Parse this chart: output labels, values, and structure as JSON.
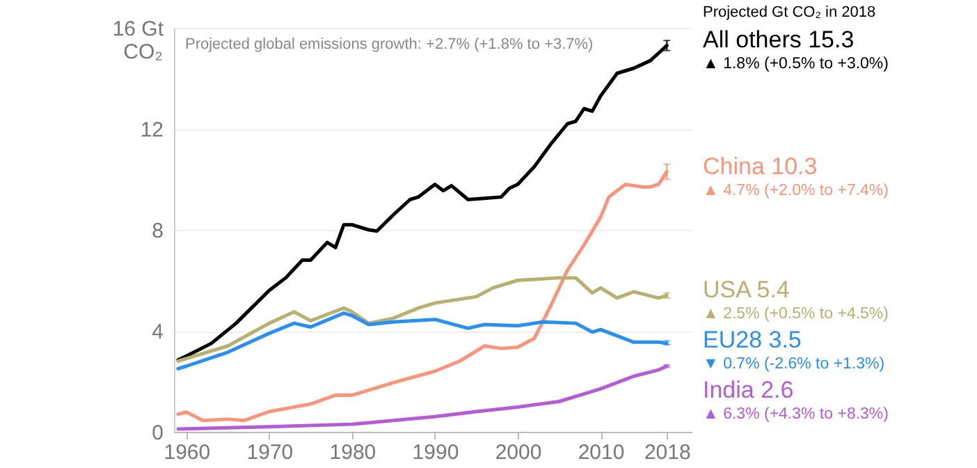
{
  "chart_data": {
    "type": "line",
    "legend_title": "Projected Gt CO₂ in 2018",
    "ylabel": "CO₂",
    "annotations": [
      "Projected global emissions growth: +2.7% (+1.8% to +3.7%)",
      "▲ 1.8% (+0.5% to +3.0%)",
      "▲ 4.7% (+2.0% to +7.4%)",
      "▲ 2.5% (+0.5% to +4.5%)",
      "▼ 0.7% (-2.6% to +1.3%)",
      "▲ 6.3% (+4.3% to +8.3%)"
    ],
    "xlim": [
      1958.5,
      2021
    ],
    "xticks": [
      1960,
      1970,
      1980,
      1990,
      2000,
      2010,
      2018
    ],
    "ylim": [
      0,
      16
    ],
    "yticks": [
      0,
      4,
      8,
      12,
      {
        "value": 16,
        "label": "16 Gt"
      }
    ],
    "grid": "y",
    "series": [
      {
        "name": "All others",
        "color": "#000000",
        "x": [
          1959,
          1960,
          1963,
          1966,
          1970,
          1972,
          1974,
          1975,
          1977,
          1978,
          1979,
          1980,
          1982,
          1983,
          1985,
          1987,
          1988,
          1990,
          1991,
          1992,
          1994,
          1996,
          1998,
          1999,
          2000,
          2002,
          2004,
          2006,
          2007,
          2008,
          2009,
          2010,
          2012,
          2014,
          2016,
          2017,
          2018
        ],
        "values": [
          2.85,
          3.0,
          3.5,
          4.3,
          5.6,
          6.1,
          6.8,
          6.8,
          7.5,
          7.3,
          8.2,
          8.2,
          8.0,
          7.95,
          8.6,
          9.2,
          9.3,
          9.8,
          9.55,
          9.75,
          9.2,
          9.25,
          9.3,
          9.65,
          9.8,
          10.5,
          11.4,
          12.2,
          12.3,
          12.8,
          12.7,
          13.3,
          14.2,
          14.4,
          14.7,
          15.0,
          15.3
        ],
        "errors": [
          null,
          null,
          null,
          null,
          null,
          null,
          null,
          null,
          null,
          null,
          null,
          null,
          null,
          null,
          null,
          null,
          null,
          null,
          null,
          null,
          null,
          null,
          null,
          null,
          null,
          null,
          null,
          null,
          null,
          null,
          null,
          null,
          null,
          null,
          null,
          null,
          [
            15.1,
            15.5
          ]
        ],
        "value_labels": [
          null,
          null,
          null,
          null,
          null,
          null,
          null,
          null,
          null,
          null,
          null,
          null,
          null,
          null,
          null,
          null,
          null,
          null,
          null,
          null,
          null,
          null,
          null,
          null,
          null,
          null,
          null,
          null,
          null,
          null,
          null,
          null,
          null,
          null,
          null,
          null,
          "15.3"
        ]
      },
      {
        "name": "China",
        "color": "#f8957a",
        "x": [
          1959,
          1960,
          1962,
          1965,
          1967,
          1970,
          1975,
          1978,
          1980,
          1985,
          1990,
          1993,
          1996,
          1998,
          2000,
          2002,
          2004,
          2006,
          2008,
          2010,
          2011,
          2013,
          2015,
          2016,
          2017,
          2018
        ],
        "values": [
          0.7,
          0.78,
          0.45,
          0.5,
          0.45,
          0.8,
          1.1,
          1.45,
          1.45,
          1.95,
          2.4,
          2.8,
          3.4,
          3.3,
          3.35,
          3.7,
          5.0,
          6.4,
          7.4,
          8.5,
          9.3,
          9.8,
          9.7,
          9.7,
          9.8,
          10.3
        ],
        "errors": [
          null,
          null,
          null,
          null,
          null,
          null,
          null,
          null,
          null,
          null,
          null,
          null,
          null,
          null,
          null,
          null,
          null,
          null,
          null,
          null,
          null,
          null,
          null,
          null,
          null,
          [
            10.0,
            10.6
          ]
        ],
        "value_labels": [
          null,
          null,
          null,
          null,
          null,
          null,
          null,
          null,
          null,
          null,
          null,
          null,
          null,
          null,
          null,
          null,
          null,
          null,
          null,
          null,
          null,
          null,
          null,
          null,
          null,
          "10.3"
        ]
      },
      {
        "name": "USA",
        "color": "#b8b070",
        "x": [
          1959,
          1960,
          1965,
          1970,
          1973,
          1975,
          1979,
          1980,
          1982,
          1985,
          1988,
          1990,
          1995,
          1997,
          2000,
          2005,
          2007,
          2009,
          2010,
          2012,
          2014,
          2017,
          2018
        ],
        "values": [
          2.8,
          2.9,
          3.4,
          4.3,
          4.75,
          4.4,
          4.9,
          4.75,
          4.3,
          4.5,
          4.9,
          5.1,
          5.35,
          5.7,
          6.0,
          6.1,
          6.1,
          5.5,
          5.7,
          5.3,
          5.55,
          5.3,
          5.4
        ],
        "errors": [
          null,
          null,
          null,
          null,
          null,
          null,
          null,
          null,
          null,
          null,
          null,
          null,
          null,
          null,
          null,
          null,
          null,
          null,
          null,
          null,
          null,
          null,
          [
            5.3,
            5.5
          ]
        ],
        "value_labels": [
          null,
          null,
          null,
          null,
          null,
          null,
          null,
          null,
          null,
          null,
          null,
          null,
          null,
          null,
          null,
          null,
          null,
          null,
          null,
          null,
          null,
          null,
          "5.4"
        ]
      },
      {
        "name": "EU28",
        "color": "#2b8ff0",
        "x": [
          1959,
          1960,
          1965,
          1970,
          1973,
          1975,
          1979,
          1980,
          1982,
          1985,
          1990,
          1994,
          1996,
          2000,
          2003,
          2007,
          2009,
          2010,
          2014,
          2017,
          2018
        ],
        "values": [
          2.5,
          2.6,
          3.15,
          3.9,
          4.3,
          4.15,
          4.7,
          4.6,
          4.25,
          4.35,
          4.45,
          4.1,
          4.25,
          4.2,
          4.35,
          4.3,
          3.95,
          4.05,
          3.55,
          3.55,
          3.5
        ],
        "errors": [
          null,
          null,
          null,
          null,
          null,
          null,
          null,
          null,
          null,
          null,
          null,
          null,
          null,
          null,
          null,
          null,
          null,
          null,
          null,
          null,
          [
            3.45,
            3.6
          ]
        ],
        "value_labels": [
          null,
          null,
          null,
          null,
          null,
          null,
          null,
          null,
          null,
          null,
          null,
          null,
          null,
          null,
          null,
          null,
          null,
          null,
          null,
          null,
          "3.5"
        ]
      },
      {
        "name": "India",
        "color": "#b45bd6",
        "x": [
          1959,
          1960,
          1970,
          1980,
          1990,
          1995,
          2000,
          2005,
          2010,
          2014,
          2017,
          2018
        ],
        "values": [
          0.11,
          0.12,
          0.2,
          0.3,
          0.6,
          0.8,
          0.98,
          1.2,
          1.7,
          2.2,
          2.45,
          2.6
        ],
        "errors": [
          null,
          null,
          null,
          null,
          null,
          null,
          null,
          null,
          null,
          null,
          null,
          [
            2.55,
            2.65
          ]
        ],
        "value_labels": [
          null,
          null,
          null,
          null,
          null,
          null,
          null,
          null,
          null,
          null,
          null,
          "2.6"
        ]
      }
    ]
  }
}
